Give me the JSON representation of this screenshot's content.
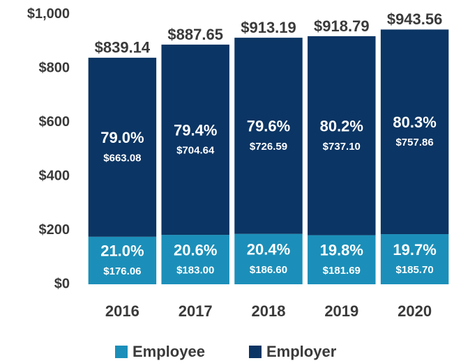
{
  "chart_data": {
    "type": "stacked_bar",
    "categories": [
      "2016",
      "2017",
      "2018",
      "2019",
      "2020"
    ],
    "series": [
      {
        "name": "Employee",
        "color": "#1b8fb9",
        "values": [
          176.06,
          183.0,
          186.6,
          181.69,
          185.7
        ],
        "value_labels": [
          "$176.06",
          "$183.00",
          "$186.60",
          "$181.69",
          "$185.70"
        ],
        "shares": [
          21.0,
          20.6,
          20.4,
          19.8,
          19.7
        ],
        "share_labels": [
          "21.0%",
          "20.6%",
          "20.4%",
          "19.8%",
          "19.7%"
        ]
      },
      {
        "name": "Employer",
        "color": "#0b3564",
        "values": [
          663.08,
          704.64,
          726.59,
          737.1,
          757.86
        ],
        "value_labels": [
          "$663.08",
          "$704.64",
          "$726.59",
          "$737.10",
          "$757.86"
        ],
        "shares": [
          79.0,
          79.4,
          79.6,
          80.2,
          80.3
        ],
        "share_labels": [
          "79.0%",
          "79.4%",
          "79.6%",
          "80.2%",
          "80.3%"
        ]
      }
    ],
    "totals": [
      839.14,
      887.65,
      913.19,
      918.79,
      943.56
    ],
    "total_labels": [
      "$839.14",
      "$887.65",
      "$913.19",
      "$918.79",
      "$943.56"
    ],
    "ylim": [
      0,
      1000
    ],
    "yticks": [
      {
        "value": 0,
        "label": "$0"
      },
      {
        "value": 200,
        "label": "$200"
      },
      {
        "value": 400,
        "label": "$400"
      },
      {
        "value": 600,
        "label": "$600"
      },
      {
        "value": 800,
        "label": "$800"
      },
      {
        "value": 1000,
        "label": "$1,000"
      }
    ],
    "legend": "bottom"
  }
}
